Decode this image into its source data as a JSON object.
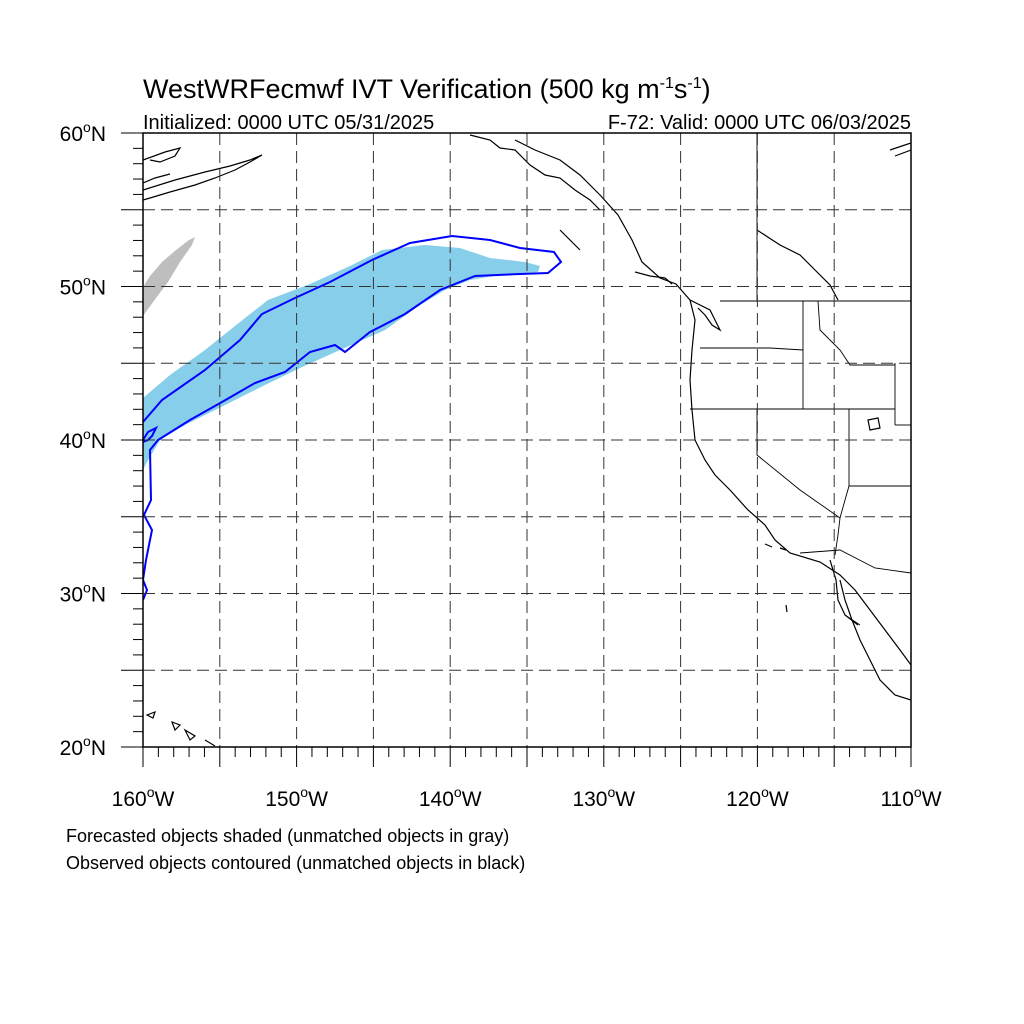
{
  "title": {
    "main": "WestWRFecmwf IVT Verification (500 kg m",
    "exp1": "-1",
    "mid": "s",
    "exp2": "-1",
    "close": ")"
  },
  "subtitle": {
    "left": "Initialized: 0000 UTC 05/31/2025",
    "right": "F-72: Valid: 0000 UTC 06/03/2025"
  },
  "axes": {
    "lon_range": [
      -160,
      -110
    ],
    "lat_range": [
      20,
      60
    ],
    "x_ticks": [
      {
        "deg": "160",
        "dir": "W"
      },
      {
        "deg": "150",
        "dir": "W"
      },
      {
        "deg": "140",
        "dir": "W"
      },
      {
        "deg": "130",
        "dir": "W"
      },
      {
        "deg": "120",
        "dir": "W"
      },
      {
        "deg": "110",
        "dir": "W"
      }
    ],
    "y_ticks": [
      {
        "deg": "60",
        "dir": "N"
      },
      {
        "deg": "50",
        "dir": "N"
      },
      {
        "deg": "40",
        "dir": "N"
      },
      {
        "deg": "30",
        "dir": "N"
      },
      {
        "deg": "20",
        "dir": "N"
      }
    ],
    "grid_lon_step": 5,
    "grid_lat_step": 5,
    "grid": "dashed"
  },
  "colors": {
    "forecast_matched": "#87ceeb",
    "forecast_unmatched": "#bebebe",
    "observed_matched": "#0000ff",
    "coast": "#000000"
  },
  "features": {
    "forecast_matched_object": "atmospheric river, shaded",
    "forecast_unmatched_object": "small object near 160W 50N, gray",
    "observed_matched_object": "contour"
  },
  "footer": {
    "line1": "Forecasted objects shaded (unmatched objects in gray)",
    "line2": "Observed objects contoured (unmatched objects in black)"
  }
}
